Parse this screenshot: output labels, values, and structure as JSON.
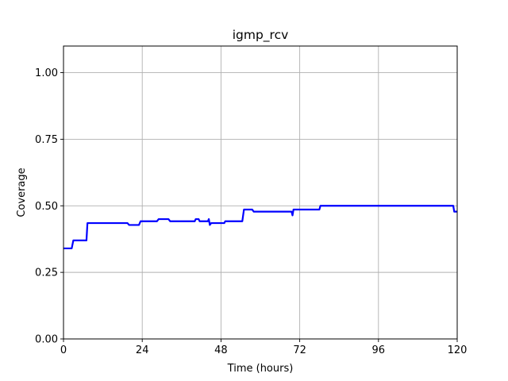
{
  "chart_data": {
    "type": "line",
    "title": "igmp_rcv",
    "xlabel": "Time (hours)",
    "ylabel": "Coverage",
    "xlim": [
      0,
      120
    ],
    "ylim": [
      0.0,
      1.1
    ],
    "xticks": [
      0,
      24,
      48,
      72,
      96,
      120
    ],
    "xtick_labels": [
      "0",
      "24",
      "48",
      "72",
      "96",
      "120"
    ],
    "yticks": [
      0.0,
      0.25,
      0.5,
      0.75,
      1.0
    ],
    "ytick_labels": [
      "0.00",
      "0.25",
      "0.50",
      "0.75",
      "1.00"
    ],
    "grid": true,
    "series": [
      {
        "color": "#0000ff",
        "x": [
          0,
          2.5,
          3.0,
          7.0,
          7.3,
          19.5,
          20.0,
          23.0,
          23.5,
          28.5,
          29.0,
          32.0,
          32.5,
          40.0,
          40.3,
          41.2,
          41.5,
          44.0,
          44.3,
          44.6,
          45.0,
          49.0,
          49.3,
          54.5,
          55.0,
          57.5,
          58.0,
          69.5,
          69.8,
          70.1,
          70.4,
          78.0,
          78.3,
          118.8,
          119.1,
          120
        ],
        "y": [
          0.34,
          0.34,
          0.37,
          0.37,
          0.435,
          0.435,
          0.428,
          0.428,
          0.442,
          0.442,
          0.45,
          0.45,
          0.442,
          0.442,
          0.45,
          0.45,
          0.442,
          0.442,
          0.45,
          0.428,
          0.435,
          0.435,
          0.442,
          0.442,
          0.486,
          0.486,
          0.478,
          0.478,
          0.464,
          0.486,
          0.486,
          0.486,
          0.5,
          0.5,
          0.478,
          0.478
        ]
      }
    ]
  }
}
